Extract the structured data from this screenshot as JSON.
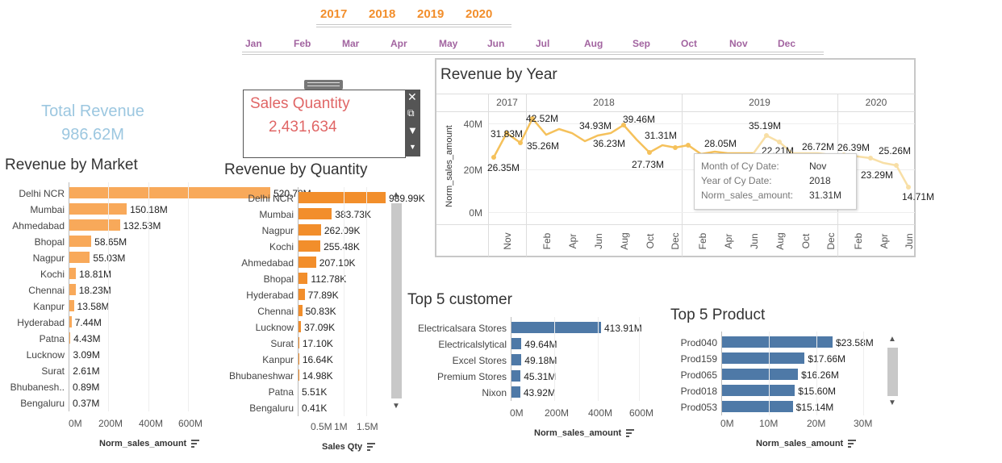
{
  "filters": {
    "years": [
      "2017",
      "2018",
      "2019",
      "2020"
    ],
    "months": [
      "Jan",
      "Feb",
      "Mar",
      "Apr",
      "May",
      "Jun",
      "Jul",
      "Aug",
      "Sep",
      "Oct",
      "Nov",
      "Dec"
    ]
  },
  "kpi": {
    "label": "Total Revenue",
    "value": "986.62M"
  },
  "sales_quantity": {
    "label": "Sales Quantity",
    "value": "2,431,634"
  },
  "colors": {
    "orange": "#f28e2b",
    "light_orange": "#f8a95a",
    "blue": "#4e79a7",
    "line": "#f5c15b",
    "purple": "#a264a0"
  },
  "revenue_by_market": {
    "title": "Revenue by Market",
    "axis_title": "Norm_sales_amount",
    "ticks": [
      "0M",
      "200M",
      "400M",
      "600M"
    ],
    "max": 600,
    "rows": [
      {
        "label": "Delhi NCR",
        "value": 520.78,
        "text": "520.78M"
      },
      {
        "label": "Mumbai",
        "value": 150.18,
        "text": "150.18M"
      },
      {
        "label": "Ahmedabad",
        "value": 132.53,
        "text": "132.53M"
      },
      {
        "label": "Bhopal",
        "value": 58.65,
        "text": "58.65M"
      },
      {
        "label": "Nagpur",
        "value": 55.03,
        "text": "55.03M"
      },
      {
        "label": "Kochi",
        "value": 18.81,
        "text": "18.81M"
      },
      {
        "label": "Chennai",
        "value": 18.23,
        "text": "18.23M"
      },
      {
        "label": "Kanpur",
        "value": 13.58,
        "text": "13.58M"
      },
      {
        "label": "Hyderabad",
        "value": 7.44,
        "text": "7.44M"
      },
      {
        "label": "Patna",
        "value": 4.43,
        "text": "4.43M"
      },
      {
        "label": "Lucknow",
        "value": 3.09,
        "text": "3.09M"
      },
      {
        "label": "Surat",
        "value": 2.61,
        "text": "2.61M"
      },
      {
        "label": "Bhubanesh..",
        "value": 0.89,
        "text": "0.89M"
      },
      {
        "label": "Bengaluru",
        "value": 0.37,
        "text": "0.37M"
      }
    ]
  },
  "revenue_by_quantity": {
    "title": "Revenue by Quantity",
    "axis_title": "Sales Qty",
    "ticks": [
      "0.5M",
      "1M",
      "1.5M"
    ],
    "rows": [
      {
        "label": "Delhi NCR",
        "value": 989.99,
        "text": "989.99K"
      },
      {
        "label": "Mumbai",
        "value": 383.73,
        "text": "383.73K"
      },
      {
        "label": "Nagpur",
        "value": 262.09,
        "text": "262.09K"
      },
      {
        "label": "Kochi",
        "value": 255.48,
        "text": "255.48K"
      },
      {
        "label": "Ahmedabad",
        "value": 207.1,
        "text": "207.10K"
      },
      {
        "label": "Bhopal",
        "value": 112.78,
        "text": "112.78K"
      },
      {
        "label": "Hyderabad",
        "value": 77.89,
        "text": "77.89K"
      },
      {
        "label": "Chennai",
        "value": 50.83,
        "text": "50.83K"
      },
      {
        "label": "Lucknow",
        "value": 37.09,
        "text": "37.09K"
      },
      {
        "label": "Surat",
        "value": 17.1,
        "text": "17.10K"
      },
      {
        "label": "Kanpur",
        "value": 16.64,
        "text": "16.64K"
      },
      {
        "label": "Bhubaneshwar",
        "value": 14.98,
        "text": "14.98K"
      },
      {
        "label": "Patna",
        "value": 5.51,
        "text": "5.51K"
      },
      {
        "label": "Bengaluru",
        "value": 0.41,
        "text": "0.41K"
      }
    ]
  },
  "revenue_by_year": {
    "title": "Revenue by Year",
    "axis_title": "Norm_sales_amount",
    "y_ticks": [
      "40M",
      "20M",
      "0M"
    ],
    "years": [
      "2017",
      "2018",
      "2019",
      "2020"
    ],
    "month_ticks": [
      "Nov",
      "Feb",
      "Apr",
      "Jun",
      "Aug",
      "Oct",
      "Dec",
      "Feb",
      "Apr",
      "Jun",
      "Aug",
      "Oct",
      "Dec",
      "Feb",
      "Apr",
      "Jun"
    ],
    "point_labels": [
      "31.83M",
      "26.35M",
      "42.52M",
      "35.26M",
      "34.93M",
      "36.23M",
      "39.46M",
      "27.73M",
      "31.31M",
      "28.05M",
      "35.19M",
      "22.21M",
      "26.72M",
      "26.39M",
      "25.26M",
      "23.29M",
      "14.71M"
    ],
    "tooltip": {
      "k1": "Month of Cy Date:",
      "v1": "Nov",
      "k2": "Year of Cy Date:",
      "v2": "2018",
      "k3": "Norm_sales_amount:",
      "v3": "31.31M"
    }
  },
  "top5_customer": {
    "title": "Top 5 customer",
    "axis_title": "Norm_sales_amount",
    "ticks": [
      "0M",
      "200M",
      "400M",
      "600M"
    ],
    "rows": [
      {
        "label": "Electricalsara Stores",
        "value": 413.91,
        "text": "413.91M"
      },
      {
        "label": "Electricalslytical",
        "value": 49.64,
        "text": "49.64M"
      },
      {
        "label": "Excel Stores",
        "value": 49.18,
        "text": "49.18M"
      },
      {
        "label": "Premium Stores",
        "value": 45.31,
        "text": "45.31M"
      },
      {
        "label": "Nixon",
        "value": 43.92,
        "text": "43.92M"
      }
    ]
  },
  "top5_product": {
    "title": "Top 5 Product",
    "axis_title": "Norm_sales_amount",
    "ticks": [
      "0M",
      "10M",
      "20M",
      "30M"
    ],
    "rows": [
      {
        "label": "Prod040",
        "value": 23.58,
        "text": "$23.58M"
      },
      {
        "label": "Prod159",
        "value": 17.66,
        "text": "$17.66M"
      },
      {
        "label": "Prod065",
        "value": 16.26,
        "text": "$16.26M"
      },
      {
        "label": "Prod018",
        "value": 15.6,
        "text": "$15.60M"
      },
      {
        "label": "Prod053",
        "value": 15.14,
        "text": "$15.14M"
      }
    ]
  }
}
